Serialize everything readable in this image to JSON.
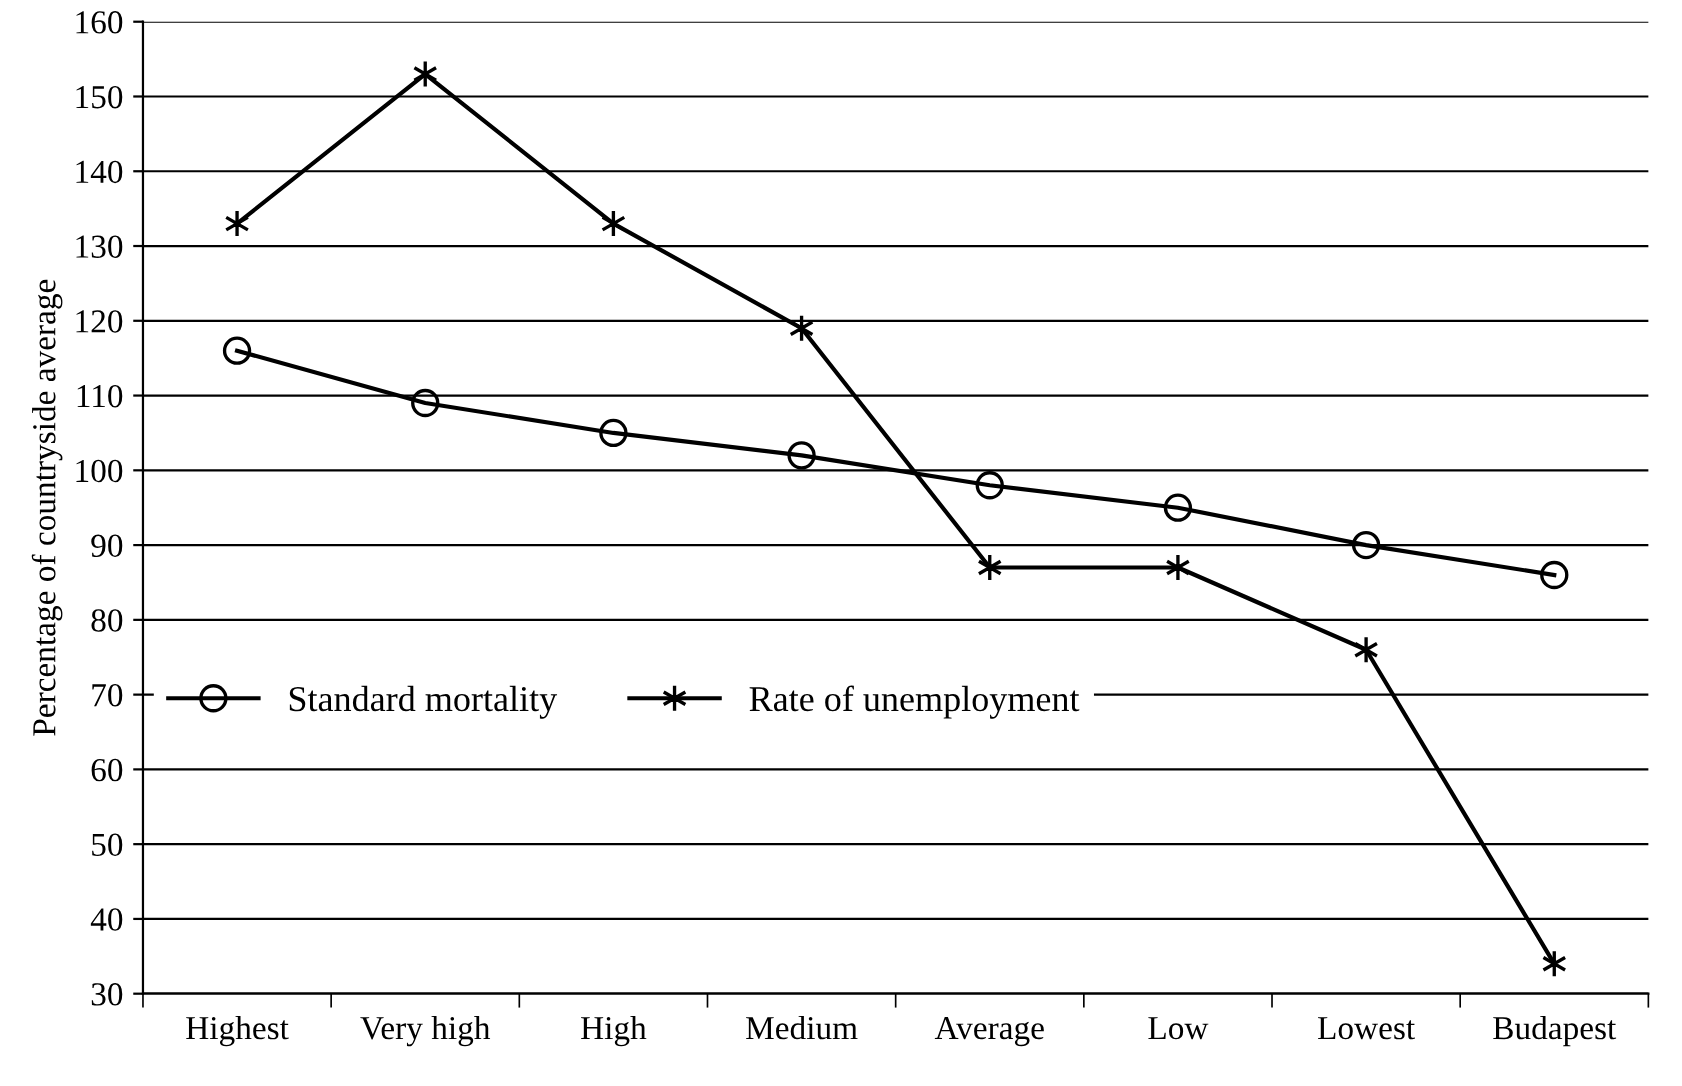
{
  "chart_data": {
    "type": "line",
    "ylabel": "Percentage of countryside average",
    "categories": [
      "Highest",
      "Very high",
      "High",
      "Medium",
      "Average",
      "Low",
      "Lowest",
      "Budapest"
    ],
    "series": [
      {
        "name": "Standard mortality",
        "color": "#000000",
        "marker": "circle",
        "values": [
          116,
          109,
          105,
          102,
          98,
          95,
          90,
          86
        ]
      },
      {
        "name": "Rate of unemployment",
        "color": "#000000",
        "marker": "cross",
        "values": [
          133,
          153,
          133,
          119,
          87,
          87,
          76,
          34
        ]
      }
    ],
    "ylim": [
      30,
      160
    ],
    "yticks": [
      30,
      40,
      50,
      60,
      70,
      80,
      90,
      100,
      110,
      120,
      130,
      140,
      150,
      160
    ],
    "grid": "y",
    "legend": "left",
    "line_style": "solid"
  }
}
